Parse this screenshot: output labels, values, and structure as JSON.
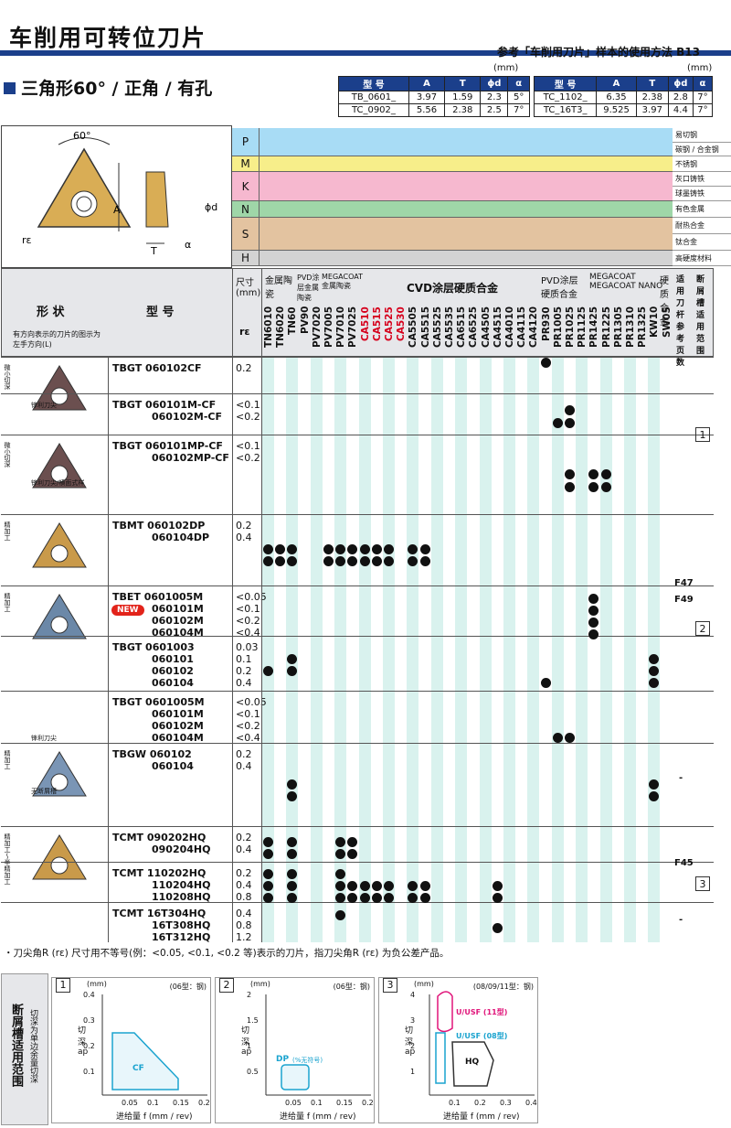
{
  "title": "车削用可转位刀片",
  "ref": "参考「车削用刀片」样本的使用方法 B13",
  "subtitle": "三角形60° / 正角 / 有孔",
  "unit": "(mm)",
  "spec_left": {
    "headers": [
      "型 号",
      "A",
      "T",
      "ϕd",
      "α"
    ],
    "rows": [
      [
        "TB_0601_",
        "3.97",
        "1.59",
        "2.3",
        "5°"
      ],
      [
        "TC_0902_",
        "5.56",
        "2.38",
        "2.5",
        "7°"
      ]
    ]
  },
  "spec_right": {
    "headers": [
      "型 号",
      "A",
      "T",
      "ϕd",
      "α"
    ],
    "rows": [
      [
        "TC_1102_",
        "6.35",
        "2.38",
        "2.8",
        "7°"
      ],
      [
        "TC_16T3_",
        "9.525",
        "3.97",
        "4.4",
        "7°"
      ]
    ]
  },
  "diagram": {
    "angle": "60°",
    "a": "A",
    "t": "T",
    "d": "ϕd",
    "alpha": "α",
    "re": "rε"
  },
  "materials": [
    {
      "code": "P",
      "rows": [
        "易切钢",
        "碳钢 / 合金钢"
      ],
      "color": "#a8dcf5"
    },
    {
      "code": "M",
      "rows": [
        "不锈钢"
      ],
      "color": "#f7ee8a"
    },
    {
      "code": "K",
      "rows": [
        "灰口铸铁",
        "球墨铸铁"
      ],
      "color": "#f6b8cf"
    },
    {
      "code": "N",
      "rows": [
        "有色金属"
      ],
      "color": "#9fd6a8"
    },
    {
      "code": "S",
      "rows": [
        "耐热合金",
        "钛合金"
      ],
      "color": "#e3c3a0"
    },
    {
      "code": "H",
      "rows": [
        "高硬度材料"
      ],
      "color": "#d3d3d3"
    }
  ],
  "headers": {
    "shape": "形 状",
    "shape_note": "有方向表示的刀片的图示为左手方向(L)",
    "model": "型 号",
    "size": "尺寸(mm)",
    "re": "rε",
    "cermet": "金属陶瓷",
    "pvd_cermet": "PVD涂层金属陶瓷",
    "megacoat_cermet": "MEGACOAT金属陶瓷",
    "cvd": "CVD涂层硬质合金",
    "pvd_carbide": "PVD涂层硬质合金",
    "megacoat_nano": "MEGACOAT MEGACOAT NANO",
    "carbide": "硬质合金",
    "holder": "适用刀杆参考页数",
    "chipbreaker": "断屑槽适用范围"
  },
  "grades": [
    "TN6010",
    "TN6020",
    "TN60",
    "PV90",
    "PV7020",
    "PV7005",
    "PV7010",
    "PV7025",
    "CA510",
    "CA515",
    "CA525",
    "CA530",
    "CA5505",
    "CA5515",
    "CA5525",
    "CA5535",
    "CA6515",
    "CA6525",
    "CA4505",
    "CA4515",
    "CA4010",
    "CA4115",
    "CA4120",
    "PR930",
    "PR1005",
    "PR1025",
    "PR1125",
    "PR1425",
    "PR1225",
    "PR1305",
    "PR1310",
    "PR1325",
    "KW10",
    "SW05"
  ],
  "groups": [
    {
      "label": "微小切深",
      "tip": "锋利刀尖",
      "models": [
        "TBGT  060102CF"
      ],
      "re": [
        "0.2"
      ]
    },
    {
      "label": "",
      "tip": "",
      "models": [
        "TBGT  060101M-CF",
        "060102M-CF"
      ],
      "re": [
        "<0.1",
        "<0.2"
      ]
    },
    {
      "label": "微小切深",
      "tip": "锋利刀尖/横面式样",
      "models": [
        "TBGT  060101MP-CF",
        "060102MP-CF"
      ],
      "re": [
        "<0.1",
        "<0.2"
      ]
    },
    {
      "label": "精加工",
      "tip": "",
      "models": [
        "TBMT  060102DP",
        "060104DP"
      ],
      "re": [
        "0.2",
        "0.4"
      ]
    },
    {
      "label": "精加工",
      "tip": "锋利刀尖",
      "models": [
        "TBET  0601005M",
        "060101M",
        "060102M",
        "060104M"
      ],
      "re": [
        "<0.05",
        "<0.1",
        "<0.2",
        "<0.4"
      ]
    },
    {
      "label": "",
      "tip": "",
      "models": [
        "TBGT  0601003",
        "060101",
        "060102",
        "060104"
      ],
      "re": [
        "0.03",
        "0.1",
        "0.2",
        "0.4"
      ]
    },
    {
      "label": "",
      "tip": "",
      "models": [
        "TBGT  0601005M",
        "060101M",
        "060102M",
        "060104M"
      ],
      "re": [
        "<0.05",
        "<0.1",
        "<0.2",
        "<0.4"
      ]
    },
    {
      "label": "精加工",
      "tip": "无断屑槽",
      "models": [
        "TBGW  060102",
        "060104"
      ],
      "re": [
        "0.2",
        "0.4"
      ]
    },
    {
      "label": "精加工～半精加工",
      "tip": "",
      "models": [
        "TCMT  090202HQ",
        "090204HQ"
      ],
      "re": [
        "0.2",
        "0.4"
      ]
    },
    {
      "label": "",
      "tip": "",
      "models": [
        "TCMT  110202HQ",
        "110204HQ",
        "110208HQ"
      ],
      "re": [
        "0.2",
        "0.4",
        "0.8"
      ]
    },
    {
      "label": "",
      "tip": "",
      "models": [
        "TCMT  16T304HQ",
        "16T308HQ",
        "16T312HQ"
      ],
      "re": [
        "0.4",
        "0.8",
        "1.2"
      ]
    }
  ],
  "pages": [
    "F47",
    "F49",
    "F45",
    "-",
    "-"
  ],
  "boxes": [
    "1",
    "2",
    "3"
  ],
  "new_badge": "NEW",
  "note": "・刀尖角R (rε) 尺寸用不等号(例：<0.05, <0.1, <0.2 等)表示的刀片，指刀尖角R (rε) 为负公差产品。",
  "footer_label": "断屑槽适用范围",
  "footer_sub": "切深为单边余量切深",
  "panels": [
    {
      "n": "1",
      "unit": "(mm)",
      "type": "(06型：钢)",
      "ylabel": "切深 ap",
      "xlabel": "进给量 f (mm / rev)",
      "yticks": [
        "0.4",
        "0.3",
        "0.2",
        "0.1"
      ],
      "xticks": [
        "0.05",
        "0.1",
        "0.15",
        "0.2"
      ],
      "regions": [
        "CF"
      ]
    },
    {
      "n": "2",
      "unit": "(mm)",
      "type": "(06型：钢)",
      "ylabel": "切深 ap",
      "xlabel": "进给量 f (mm / rev)",
      "yticks": [
        "2",
        "1.5",
        "1",
        "0.5"
      ],
      "xticks": [
        "0.05",
        "0.1",
        "0.15",
        "0.2"
      ],
      "regions": [
        "DP",
        "(%无符号)"
      ]
    },
    {
      "n": "3",
      "unit": "(mm)",
      "type": "(08/09/11型：钢)",
      "ylabel": "切深 ap",
      "xlabel": "进给量 f (mm / rev)",
      "yticks": [
        "4",
        "3",
        "2",
        "1"
      ],
      "xticks": [
        "0.1",
        "0.2",
        "0.3",
        "0.4"
      ],
      "regions": [
        "U/USF (11型)",
        "U/USF (08型)",
        "HQ"
      ]
    }
  ]
}
